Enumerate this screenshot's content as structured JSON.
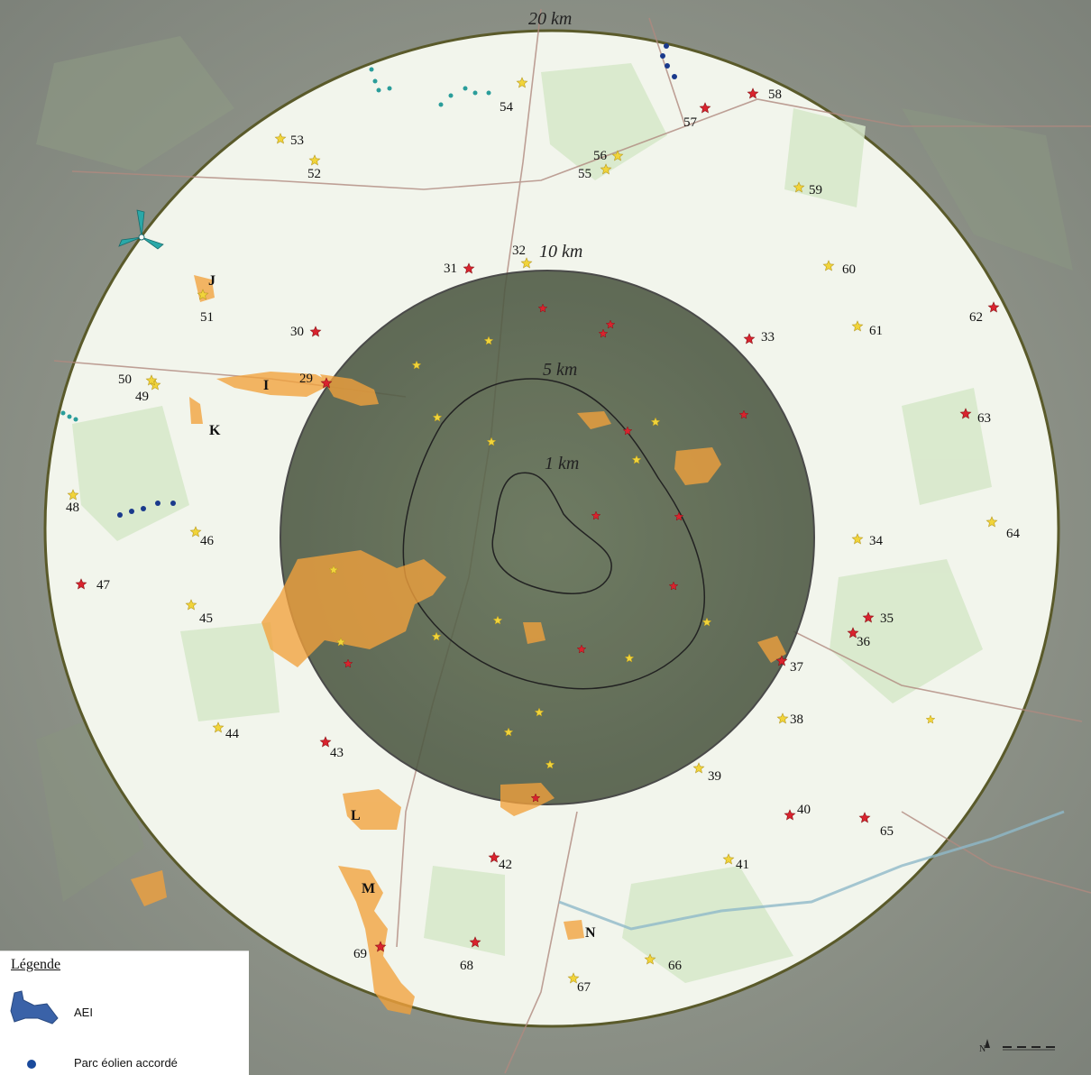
{
  "map": {
    "rings": [
      {
        "id": "r20",
        "label": "20 km"
      },
      {
        "id": "r10",
        "label": "10 km"
      },
      {
        "id": "r5",
        "label": "5 km"
      },
      {
        "id": "r1",
        "label": "1 km"
      }
    ],
    "zones": [
      "I",
      "J",
      "K",
      "L",
      "M",
      "N"
    ],
    "sites": [
      {
        "n": "29",
        "type": "red"
      },
      {
        "n": "30",
        "type": "red"
      },
      {
        "n": "31",
        "type": "red"
      },
      {
        "n": "32",
        "type": "yellow"
      },
      {
        "n": "33",
        "type": "red"
      },
      {
        "n": "34",
        "type": "yellow"
      },
      {
        "n": "35",
        "type": "red"
      },
      {
        "n": "36",
        "type": "red"
      },
      {
        "n": "37",
        "type": "red"
      },
      {
        "n": "38",
        "type": "yellow"
      },
      {
        "n": "39",
        "type": "yellow"
      },
      {
        "n": "40",
        "type": "red"
      },
      {
        "n": "41",
        "type": "yellow"
      },
      {
        "n": "42",
        "type": "red"
      },
      {
        "n": "43",
        "type": "red"
      },
      {
        "n": "44",
        "type": "yellow"
      },
      {
        "n": "45",
        "type": "yellow"
      },
      {
        "n": "46",
        "type": "yellow"
      },
      {
        "n": "47",
        "type": "red"
      },
      {
        "n": "48",
        "type": "yellow"
      },
      {
        "n": "49",
        "type": "yellow"
      },
      {
        "n": "50",
        "type": "yellow"
      },
      {
        "n": "51",
        "type": "yellow"
      },
      {
        "n": "52",
        "type": "yellow"
      },
      {
        "n": "53",
        "type": "yellow"
      },
      {
        "n": "54",
        "type": "yellow"
      },
      {
        "n": "55",
        "type": "yellow"
      },
      {
        "n": "56",
        "type": "yellow"
      },
      {
        "n": "57",
        "type": "red"
      },
      {
        "n": "58",
        "type": "red"
      },
      {
        "n": "59",
        "type": "yellow"
      },
      {
        "n": "60",
        "type": "yellow"
      },
      {
        "n": "61",
        "type": "yellow"
      },
      {
        "n": "62",
        "type": "red"
      },
      {
        "n": "63",
        "type": "red"
      },
      {
        "n": "64",
        "type": "yellow"
      },
      {
        "n": "65",
        "type": "red"
      },
      {
        "n": "66",
        "type": "yellow"
      },
      {
        "n": "67",
        "type": "yellow"
      },
      {
        "n": "68",
        "type": "red"
      },
      {
        "n": "69",
        "type": "red"
      }
    ]
  },
  "legend": {
    "title": "Légende",
    "items": [
      {
        "label": "AEI",
        "icon": "aei-shape-icon"
      },
      {
        "label": "Parc éolien accordé",
        "icon": "wind-farm-dot-icon"
      }
    ]
  },
  "colors": {
    "ring_fill": "#f3f6ee",
    "inner_shade": "#4f5a45",
    "outline": "#5a5a2a",
    "star_red": "#d9232e",
    "star_yellow": "#f1d43a",
    "orange_zone": "#f2a23c",
    "dot_blue": "#1a3a8c",
    "dot_teal": "#2a9d9a"
  }
}
